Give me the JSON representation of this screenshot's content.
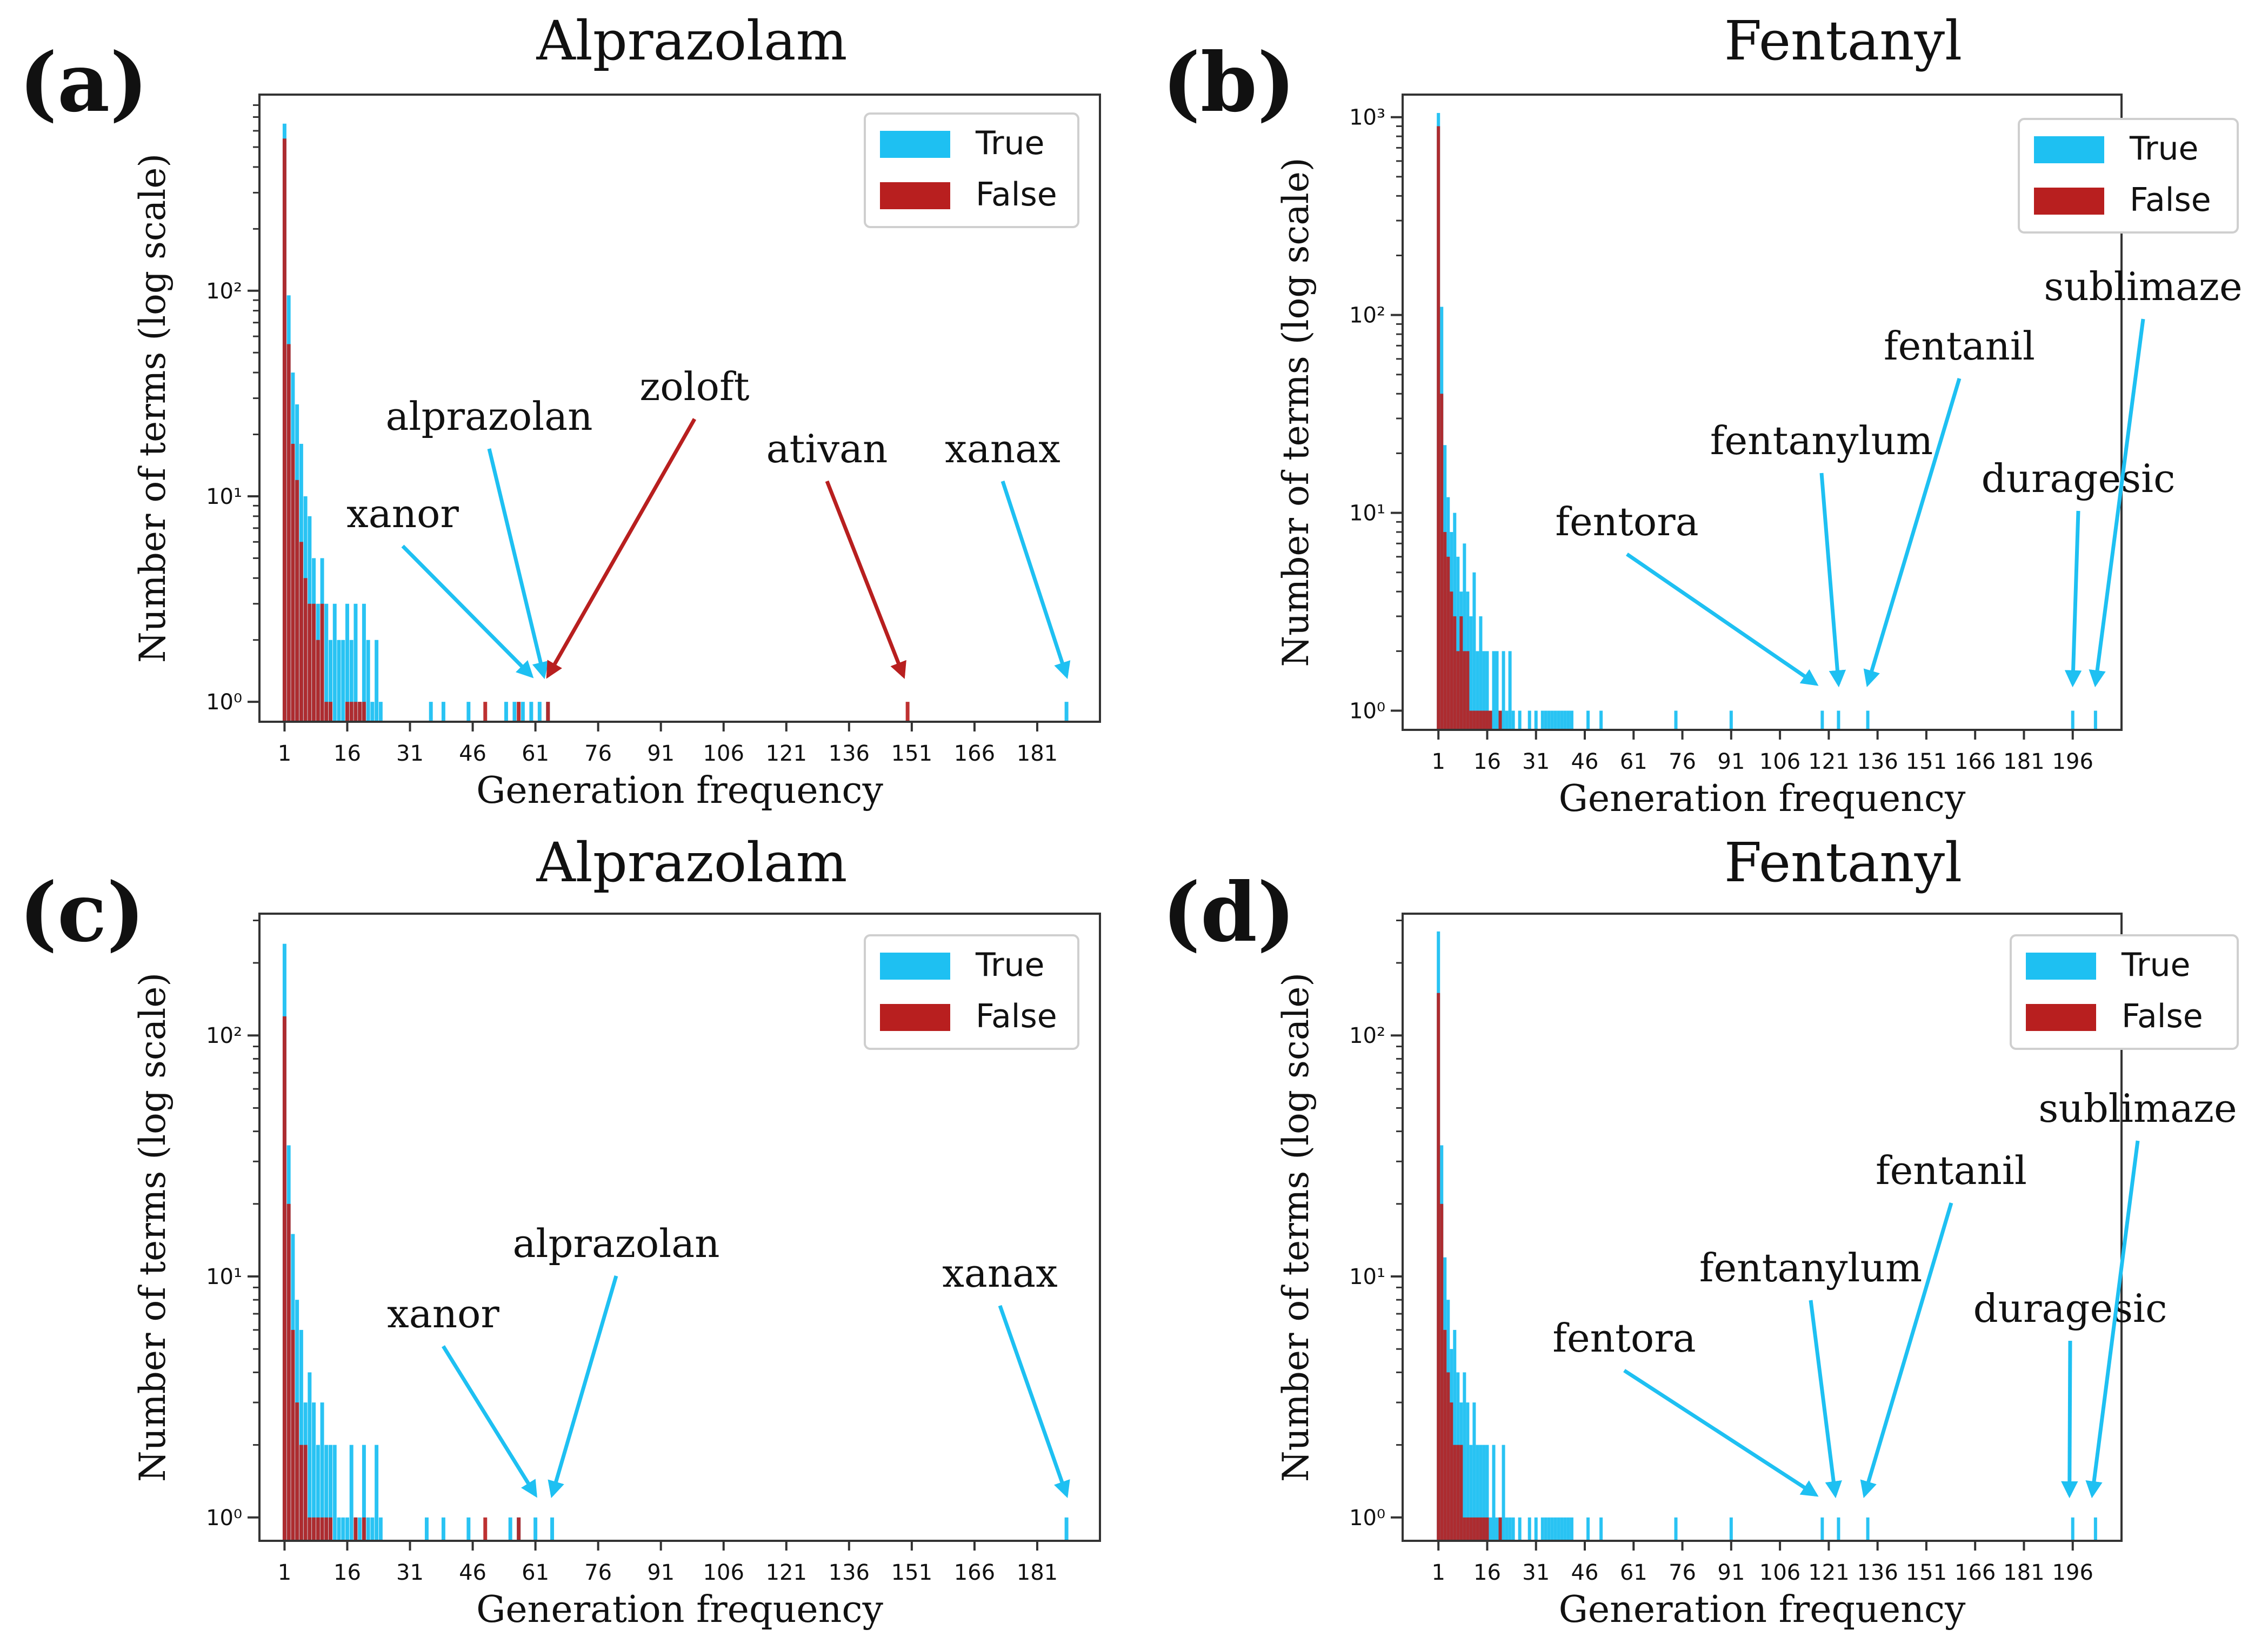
{
  "figure": {
    "colors": {
      "true": "#1ec0f2",
      "false": "#b81f1f",
      "arrow_true": "#1ec0f2",
      "arrow_false": "#b81f1f"
    }
  },
  "chart_data": [
    {
      "panel_label": "(a)",
      "title": "Alprazolam",
      "type": "bar",
      "xlabel": "Generation frequency",
      "ylabel": "Number of terms (log scale)",
      "yscale": "log",
      "ylim": [
        0.8,
        900
      ],
      "xlim": [
        -5,
        196
      ],
      "xticks": [
        1,
        16,
        31,
        46,
        61,
        76,
        91,
        106,
        121,
        136,
        151,
        166,
        181
      ],
      "yticks": [
        {
          "value": 1,
          "label": "10⁰"
        },
        {
          "value": 10,
          "label": "10¹"
        },
        {
          "value": 100,
          "label": "10²"
        }
      ],
      "legend": {
        "position": "top-right",
        "entries": [
          {
            "series": "true",
            "label": "True"
          },
          {
            "series": "false",
            "label": "False"
          }
        ]
      },
      "series": [
        {
          "name": "True",
          "key": "true",
          "x": [
            1,
            2,
            3,
            4,
            5,
            6,
            7,
            8,
            9,
            10,
            11,
            12,
            13,
            14,
            15,
            16,
            17,
            18,
            19,
            20,
            21,
            22,
            23,
            24,
            36,
            39,
            45,
            54,
            56,
            58,
            60,
            62,
            64,
            188
          ],
          "values": [
            650,
            95,
            40,
            28,
            18,
            10,
            8,
            5,
            3,
            5,
            3,
            2,
            3,
            2,
            2,
            3,
            2,
            3,
            1,
            3,
            2,
            1,
            2,
            1,
            1,
            1,
            1,
            1,
            1,
            1,
            1,
            1,
            1,
            1
          ]
        },
        {
          "name": "False",
          "key": "false",
          "x": [
            1,
            2,
            3,
            4,
            5,
            6,
            7,
            8,
            9,
            10,
            11,
            12,
            16,
            17,
            18,
            19,
            20,
            49,
            57,
            64,
            150
          ],
          "values": [
            550,
            55,
            18,
            12,
            6,
            4,
            3,
            3,
            2,
            3,
            1,
            1,
            1,
            1,
            1,
            1,
            1,
            1,
            1,
            1,
            1
          ]
        }
      ],
      "annotations": [
        {
          "text": "xanor",
          "series": "true",
          "target_x": 60
        },
        {
          "text": "alprazolan",
          "series": "true",
          "target_x": 63
        },
        {
          "text": "zoloft",
          "series": "false",
          "target_x": 64
        },
        {
          "text": "ativan",
          "series": "false",
          "target_x": 149
        },
        {
          "text": "xanax",
          "series": "true",
          "target_x": 188
        }
      ]
    },
    {
      "panel_label": "(b)",
      "title": "Fentanyl",
      "type": "bar",
      "xlabel": "Generation frequency",
      "ylabel": "Number of terms (log scale)",
      "yscale": "log",
      "ylim": [
        0.8,
        1300
      ],
      "xlim": [
        -10,
        211
      ],
      "xticks": [
        1,
        16,
        31,
        46,
        61,
        76,
        91,
        106,
        121,
        136,
        151,
        166,
        181,
        196
      ],
      "yticks": [
        {
          "value": 1,
          "label": "10⁰"
        },
        {
          "value": 10,
          "label": "10¹"
        },
        {
          "value": 100,
          "label": "10²"
        },
        {
          "value": 1000,
          "label": "10³"
        }
      ],
      "legend": {
        "position": "top-right",
        "entries": [
          {
            "series": "true",
            "label": "True"
          },
          {
            "series": "false",
            "label": "False"
          }
        ]
      },
      "series": [
        {
          "name": "True",
          "key": "true",
          "x": [
            1,
            2,
            3,
            4,
            5,
            6,
            7,
            8,
            9,
            10,
            11,
            12,
            13,
            14,
            15,
            16,
            17,
            18,
            19,
            20,
            21,
            22,
            23,
            24,
            26,
            29,
            31,
            33,
            34,
            35,
            36,
            37,
            38,
            39,
            40,
            41,
            42,
            47,
            51,
            74,
            91,
            119,
            124,
            133,
            196,
            203
          ],
          "values": [
            1050,
            110,
            22,
            12,
            8,
            10,
            6,
            4,
            7,
            4,
            3,
            5,
            2,
            3,
            2,
            2,
            1,
            2,
            2,
            1,
            2,
            1,
            2,
            1,
            1,
            1,
            1,
            1,
            1,
            1,
            1,
            1,
            1,
            1,
            1,
            1,
            1,
            1,
            1,
            1,
            1,
            1,
            1,
            1,
            1,
            1
          ]
        },
        {
          "name": "False",
          "key": "false",
          "x": [
            1,
            2,
            3,
            4,
            5,
            6,
            7,
            8,
            9,
            10,
            11,
            12,
            13,
            14,
            15,
            16,
            17,
            20
          ],
          "values": [
            900,
            40,
            8,
            6,
            4,
            3,
            2,
            3,
            2,
            2,
            1,
            1,
            1,
            1,
            1,
            1,
            1,
            1
          ]
        }
      ],
      "annotations": [
        {
          "text": "fentora",
          "series": "true",
          "target_x": 117
        },
        {
          "text": "fentanylum",
          "series": "true",
          "target_x": 124
        },
        {
          "text": "fentanil",
          "series": "true",
          "target_x": 133
        },
        {
          "text": "duragesic",
          "series": "true",
          "target_x": 196
        },
        {
          "text": "sublimaze",
          "series": "true",
          "target_x": 203
        }
      ]
    },
    {
      "panel_label": "(c)",
      "title": "Alprazolam",
      "type": "bar",
      "xlabel": "Generation frequency",
      "ylabel": "Number of terms (log scale)",
      "yscale": "log",
      "ylim": [
        0.8,
        320
      ],
      "xlim": [
        -5,
        196
      ],
      "xticks": [
        1,
        16,
        31,
        46,
        61,
        76,
        91,
        106,
        121,
        136,
        151,
        166,
        181
      ],
      "yticks": [
        {
          "value": 1,
          "label": "10⁰"
        },
        {
          "value": 10,
          "label": "10¹"
        },
        {
          "value": 100,
          "label": "10²"
        }
      ],
      "legend": {
        "position": "top-right",
        "entries": [
          {
            "series": "true",
            "label": "True"
          },
          {
            "series": "false",
            "label": "False"
          }
        ]
      },
      "series": [
        {
          "name": "True",
          "key": "true",
          "x": [
            1,
            2,
            3,
            4,
            5,
            6,
            7,
            8,
            9,
            10,
            11,
            12,
            13,
            14,
            15,
            16,
            17,
            18,
            19,
            20,
            21,
            22,
            23,
            24,
            35,
            39,
            45,
            55,
            57,
            61,
            65,
            188
          ],
          "values": [
            240,
            35,
            15,
            8,
            6,
            3,
            4,
            3,
            2,
            3,
            2,
            2,
            2,
            1,
            1,
            1,
            2,
            1,
            1,
            2,
            1,
            1,
            2,
            1,
            1,
            1,
            1,
            1,
            1,
            1,
            1,
            1
          ]
        },
        {
          "name": "False",
          "key": "false",
          "x": [
            1,
            2,
            3,
            4,
            5,
            6,
            7,
            8,
            9,
            10,
            11,
            12,
            18,
            20,
            49,
            57
          ],
          "values": [
            120,
            20,
            6,
            3,
            2,
            2,
            1,
            1,
            1,
            1,
            1,
            1,
            1,
            1,
            1,
            1
          ]
        }
      ],
      "annotations": [
        {
          "text": "xanor",
          "series": "true",
          "target_x": 61
        },
        {
          "text": "alprazolan",
          "series": "true",
          "target_x": 65
        },
        {
          "text": "xanax",
          "series": "true",
          "target_x": 188
        }
      ]
    },
    {
      "panel_label": "(d)",
      "title": "Fentanyl",
      "type": "bar",
      "xlabel": "Generation frequency",
      "ylabel": "Number of terms (log scale)",
      "yscale": "log",
      "ylim": [
        0.8,
        320
      ],
      "xlim": [
        -10,
        211
      ],
      "xticks": [
        1,
        16,
        31,
        46,
        61,
        76,
        91,
        106,
        121,
        136,
        151,
        166,
        181,
        196
      ],
      "yticks": [
        {
          "value": 1,
          "label": "10⁰"
        },
        {
          "value": 10,
          "label": "10¹"
        },
        {
          "value": 100,
          "label": "10²"
        }
      ],
      "legend": {
        "position": "top-right",
        "entries": [
          {
            "series": "true",
            "label": "True"
          },
          {
            "series": "false",
            "label": "False"
          }
        ]
      },
      "series": [
        {
          "name": "True",
          "key": "true",
          "x": [
            1,
            2,
            3,
            4,
            5,
            6,
            7,
            8,
            9,
            10,
            11,
            12,
            13,
            14,
            15,
            16,
            17,
            18,
            19,
            20,
            21,
            22,
            23,
            24,
            26,
            29,
            31,
            33,
            34,
            35,
            36,
            37,
            38,
            39,
            40,
            41,
            42,
            47,
            51,
            74,
            91,
            119,
            124,
            133,
            196,
            203
          ],
          "values": [
            270,
            35,
            12,
            8,
            5,
            6,
            4,
            3,
            4,
            3,
            2,
            3,
            2,
            2,
            2,
            2,
            1,
            2,
            1,
            1,
            2,
            1,
            1,
            1,
            1,
            1,
            1,
            1,
            1,
            1,
            1,
            1,
            1,
            1,
            1,
            1,
            1,
            1,
            1,
            1,
            1,
            1,
            1,
            1,
            1,
            1
          ]
        },
        {
          "name": "False",
          "key": "false",
          "x": [
            1,
            2,
            3,
            4,
            5,
            6,
            7,
            8,
            9,
            10,
            11,
            12,
            13,
            14,
            15,
            16,
            20
          ],
          "values": [
            150,
            20,
            6,
            4,
            3,
            2,
            2,
            2,
            1,
            1,
            1,
            1,
            1,
            1,
            1,
            1,
            1
          ]
        }
      ],
      "annotations": [
        {
          "text": "fentora",
          "series": "true",
          "target_x": 117
        },
        {
          "text": "fentanylum",
          "series": "true",
          "target_x": 123
        },
        {
          "text": "fentanil",
          "series": "true",
          "target_x": 132
        },
        {
          "text": "duragesic",
          "series": "true",
          "target_x": 195
        },
        {
          "text": "sublimaze",
          "series": "true",
          "target_x": 202
        }
      ]
    }
  ]
}
